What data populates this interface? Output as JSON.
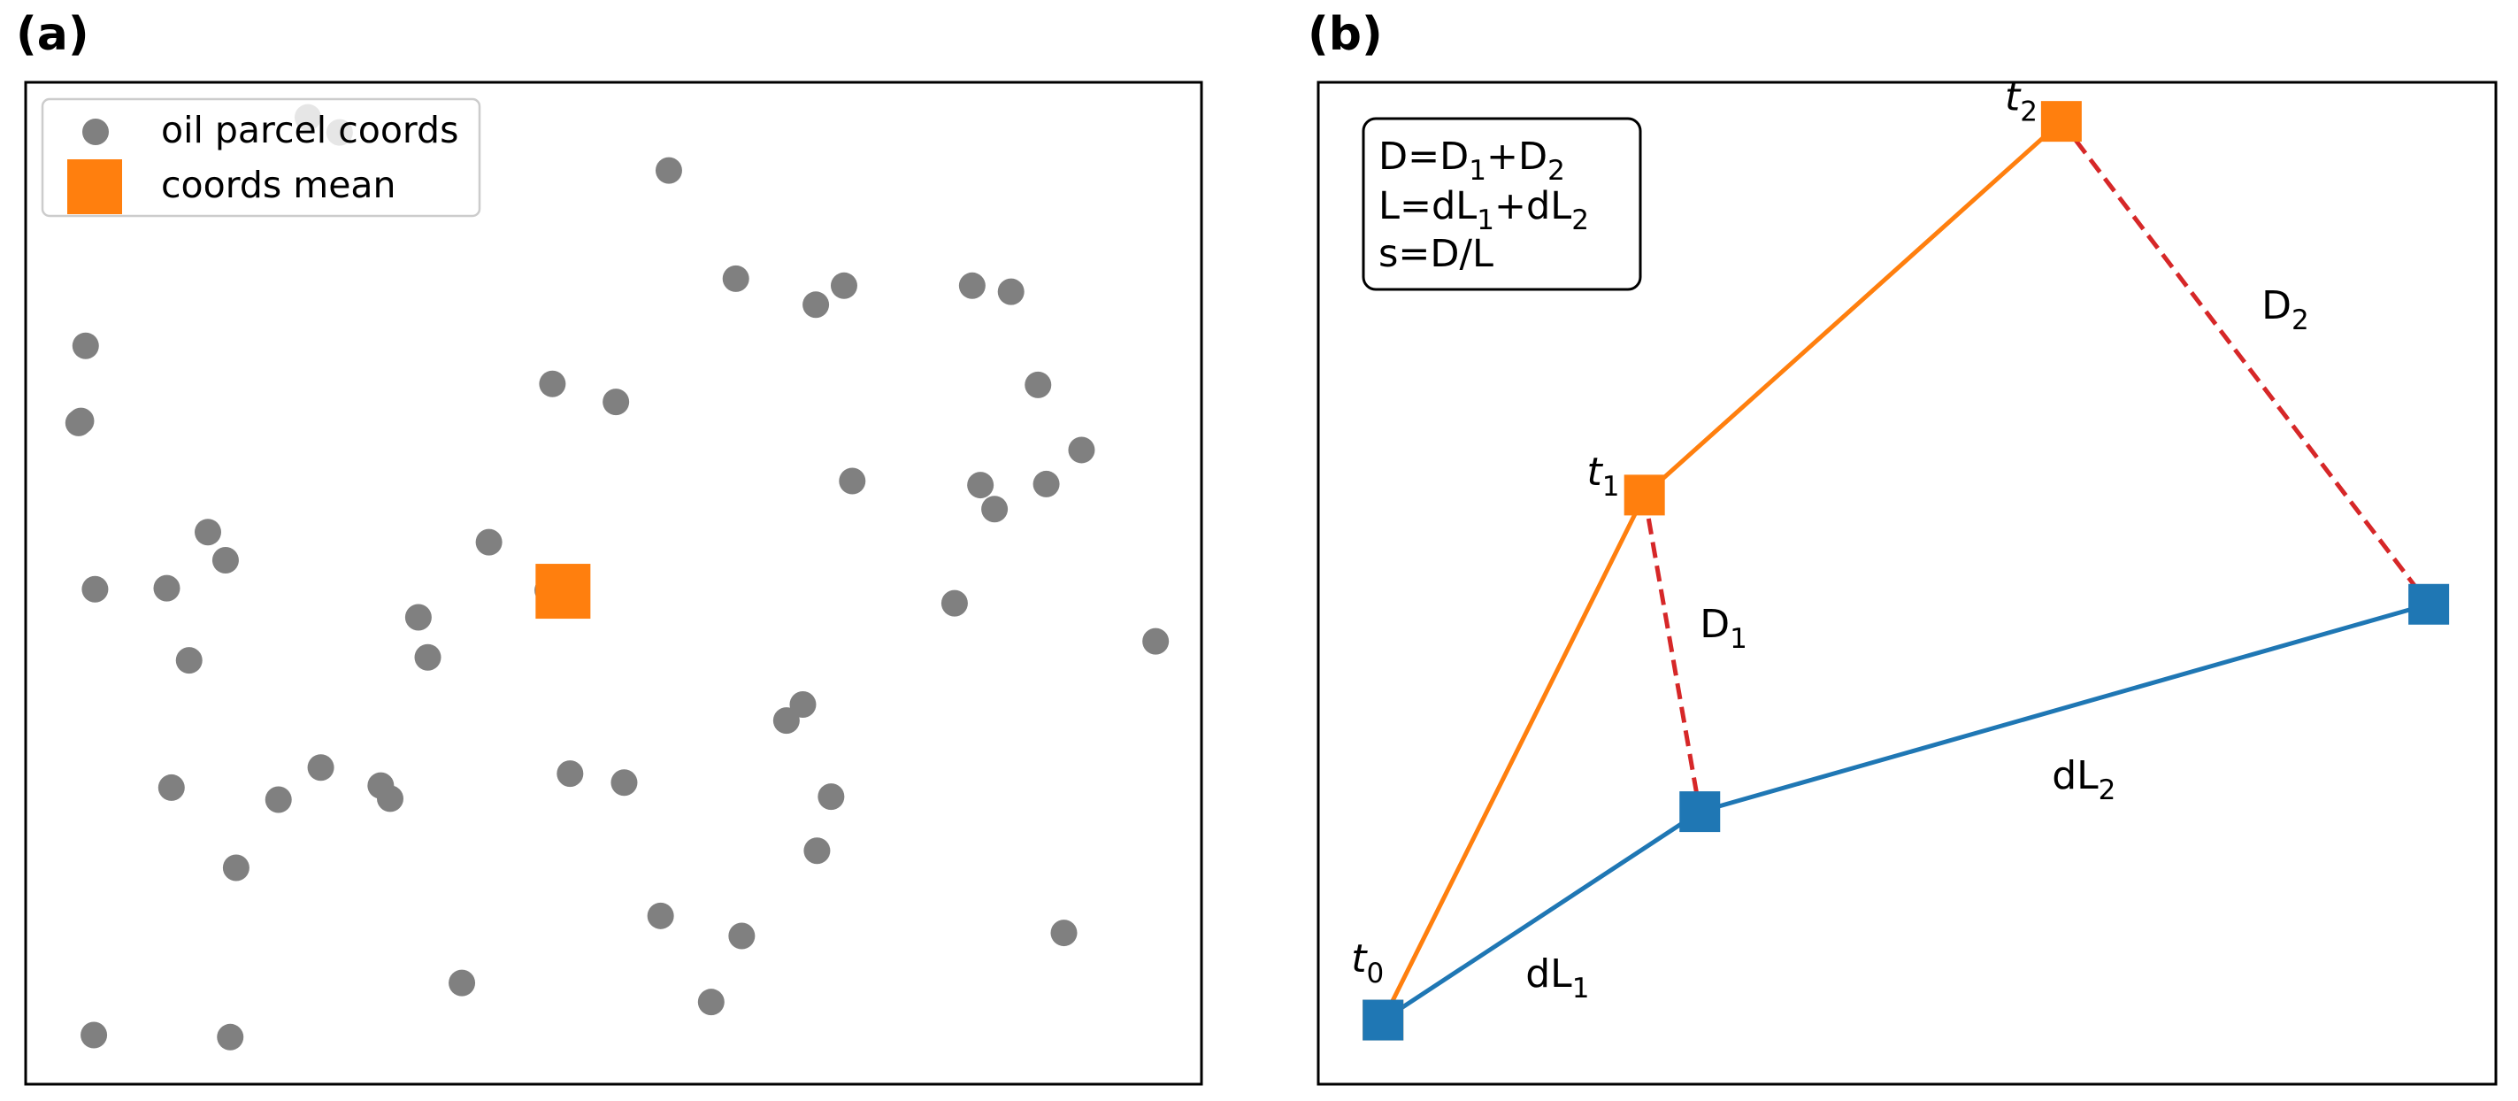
{
  "panels": {
    "a": {
      "label": "(a)"
    },
    "b": {
      "label": "(b)"
    }
  },
  "colors": {
    "parcel": "#808080",
    "mean": "#ff7f0e",
    "blue": "#1f77b4",
    "orange": "#ff7f0e",
    "red_dashed": "#d62728",
    "axes": "#000000"
  },
  "chart_data": [
    {
      "type": "scatter",
      "title": "",
      "legend": {
        "placement": "upper-left",
        "entries": [
          {
            "label": "oil parcel coords",
            "marker": "circle",
            "color": "#808080"
          },
          {
            "label": "coords mean",
            "marker": "square",
            "color": "#ff7f0e"
          }
        ]
      },
      "xlim": [
        0,
        100
      ],
      "ylim": [
        0,
        100
      ],
      "grid": false,
      "series": [
        {
          "name": "oil parcel coords",
          "points": [
            [
              24,
              96.5
            ],
            [
              26.7,
              95
            ],
            [
              54.7,
              91.2
            ],
            [
              60.4,
              80.4
            ],
            [
              67.2,
              77.8
            ],
            [
              69.6,
              79.7
            ],
            [
              80.5,
              79.7
            ],
            [
              83.8,
              79.1
            ],
            [
              5.1,
              73.7
            ],
            [
              4.7,
              66.2
            ],
            [
              4.5,
              66
            ],
            [
              44.8,
              69.9
            ],
            [
              50.2,
              68.1
            ],
            [
              86.1,
              69.8
            ],
            [
              89.8,
              63.3
            ],
            [
              70.3,
              60.2
            ],
            [
              81.2,
              59.8
            ],
            [
              82.4,
              57.4
            ],
            [
              86.8,
              59.9
            ],
            [
              15.5,
              55.1
            ],
            [
              17,
              52.3
            ],
            [
              39.4,
              54.1
            ],
            [
              5.9,
              49.4
            ],
            [
              12,
              49.5
            ],
            [
              44.4,
              49.3
            ],
            [
              79,
              48
            ],
            [
              33.4,
              46.6
            ],
            [
              96.1,
              44.2
            ],
            [
              13.9,
              42.3
            ],
            [
              34.2,
              42.6
            ],
            [
              66.1,
              37.9
            ],
            [
              64.7,
              36.3
            ],
            [
              12.4,
              29.6
            ],
            [
              25.1,
              31.6
            ],
            [
              30.2,
              29.8
            ],
            [
              31,
              28.5
            ],
            [
              21.5,
              28.4
            ],
            [
              46.3,
              31
            ],
            [
              50.9,
              30.1
            ],
            [
              68.5,
              28.7
            ],
            [
              17.9,
              21.6
            ],
            [
              67.3,
              23.3
            ],
            [
              54,
              16.8
            ],
            [
              60.9,
              14.8
            ],
            [
              88.3,
              15.1
            ],
            [
              37.1,
              10.1
            ],
            [
              58.3,
              8.2
            ],
            [
              5.8,
              4.9
            ],
            [
              17.4,
              4.7
            ]
          ]
        },
        {
          "name": "coords mean",
          "points": [
            [
              45.7,
              49.2
            ]
          ]
        }
      ]
    },
    {
      "type": "line",
      "title": "",
      "xlim": [
        0,
        100
      ],
      "ylim": [
        0,
        100
      ],
      "grid": false,
      "annotation_box": {
        "line1": {
          "base": "D=D",
          "sub1": "1",
          "mid": "+D",
          "sub2": "2"
        },
        "line2": {
          "base": "L=dL",
          "sub1": "1",
          "mid": "+dL",
          "sub2": "2"
        },
        "line3": {
          "text": "s=D/L"
        }
      },
      "series": [
        {
          "name": "",
          "color": "#ff7f0e",
          "style": "solid",
          "marker": "square",
          "points": [
            [
              5.5,
              6.4
            ],
            [
              27.7,
              58.8
            ],
            [
              63.1,
              96.1
            ]
          ]
        },
        {
          "name": "",
          "color": "#1f77b4",
          "style": "solid",
          "marker": "square",
          "points": [
            [
              5.5,
              6.4
            ],
            [
              32.4,
              27.2
            ],
            [
              94.3,
              47.9
            ]
          ]
        },
        {
          "name": "",
          "color": "#d62728",
          "style": "dashed",
          "marker": "none",
          "points": [
            [
              27.7,
              58.8
            ],
            [
              32.4,
              27.2
            ]
          ]
        },
        {
          "name": "",
          "color": "#d62728",
          "style": "dashed",
          "marker": "none",
          "points": [
            [
              63.1,
              96.1
            ],
            [
              94.3,
              47.9
            ]
          ]
        }
      ],
      "labels": [
        {
          "base": "t",
          "sub": "0",
          "italic": true,
          "x": 2.8,
          "y": 11.2
        },
        {
          "base": "t",
          "sub": "1",
          "italic": true,
          "x": 22.8,
          "y": 59.8
        },
        {
          "base": "t",
          "sub": "2",
          "italic": true,
          "x": 58.3,
          "y": 97.2
        },
        {
          "base": "D",
          "sub": "1",
          "italic": false,
          "x": 32.4,
          "y": 44.6
        },
        {
          "base": "D",
          "sub": "2",
          "italic": false,
          "x": 80.1,
          "y": 76.4
        },
        {
          "base": "dL",
          "sub": "1",
          "italic": false,
          "x": 17.6,
          "y": 9.7
        },
        {
          "base": "dL",
          "sub": "2",
          "italic": false,
          "x": 62.3,
          "y": 29.5
        }
      ]
    }
  ]
}
